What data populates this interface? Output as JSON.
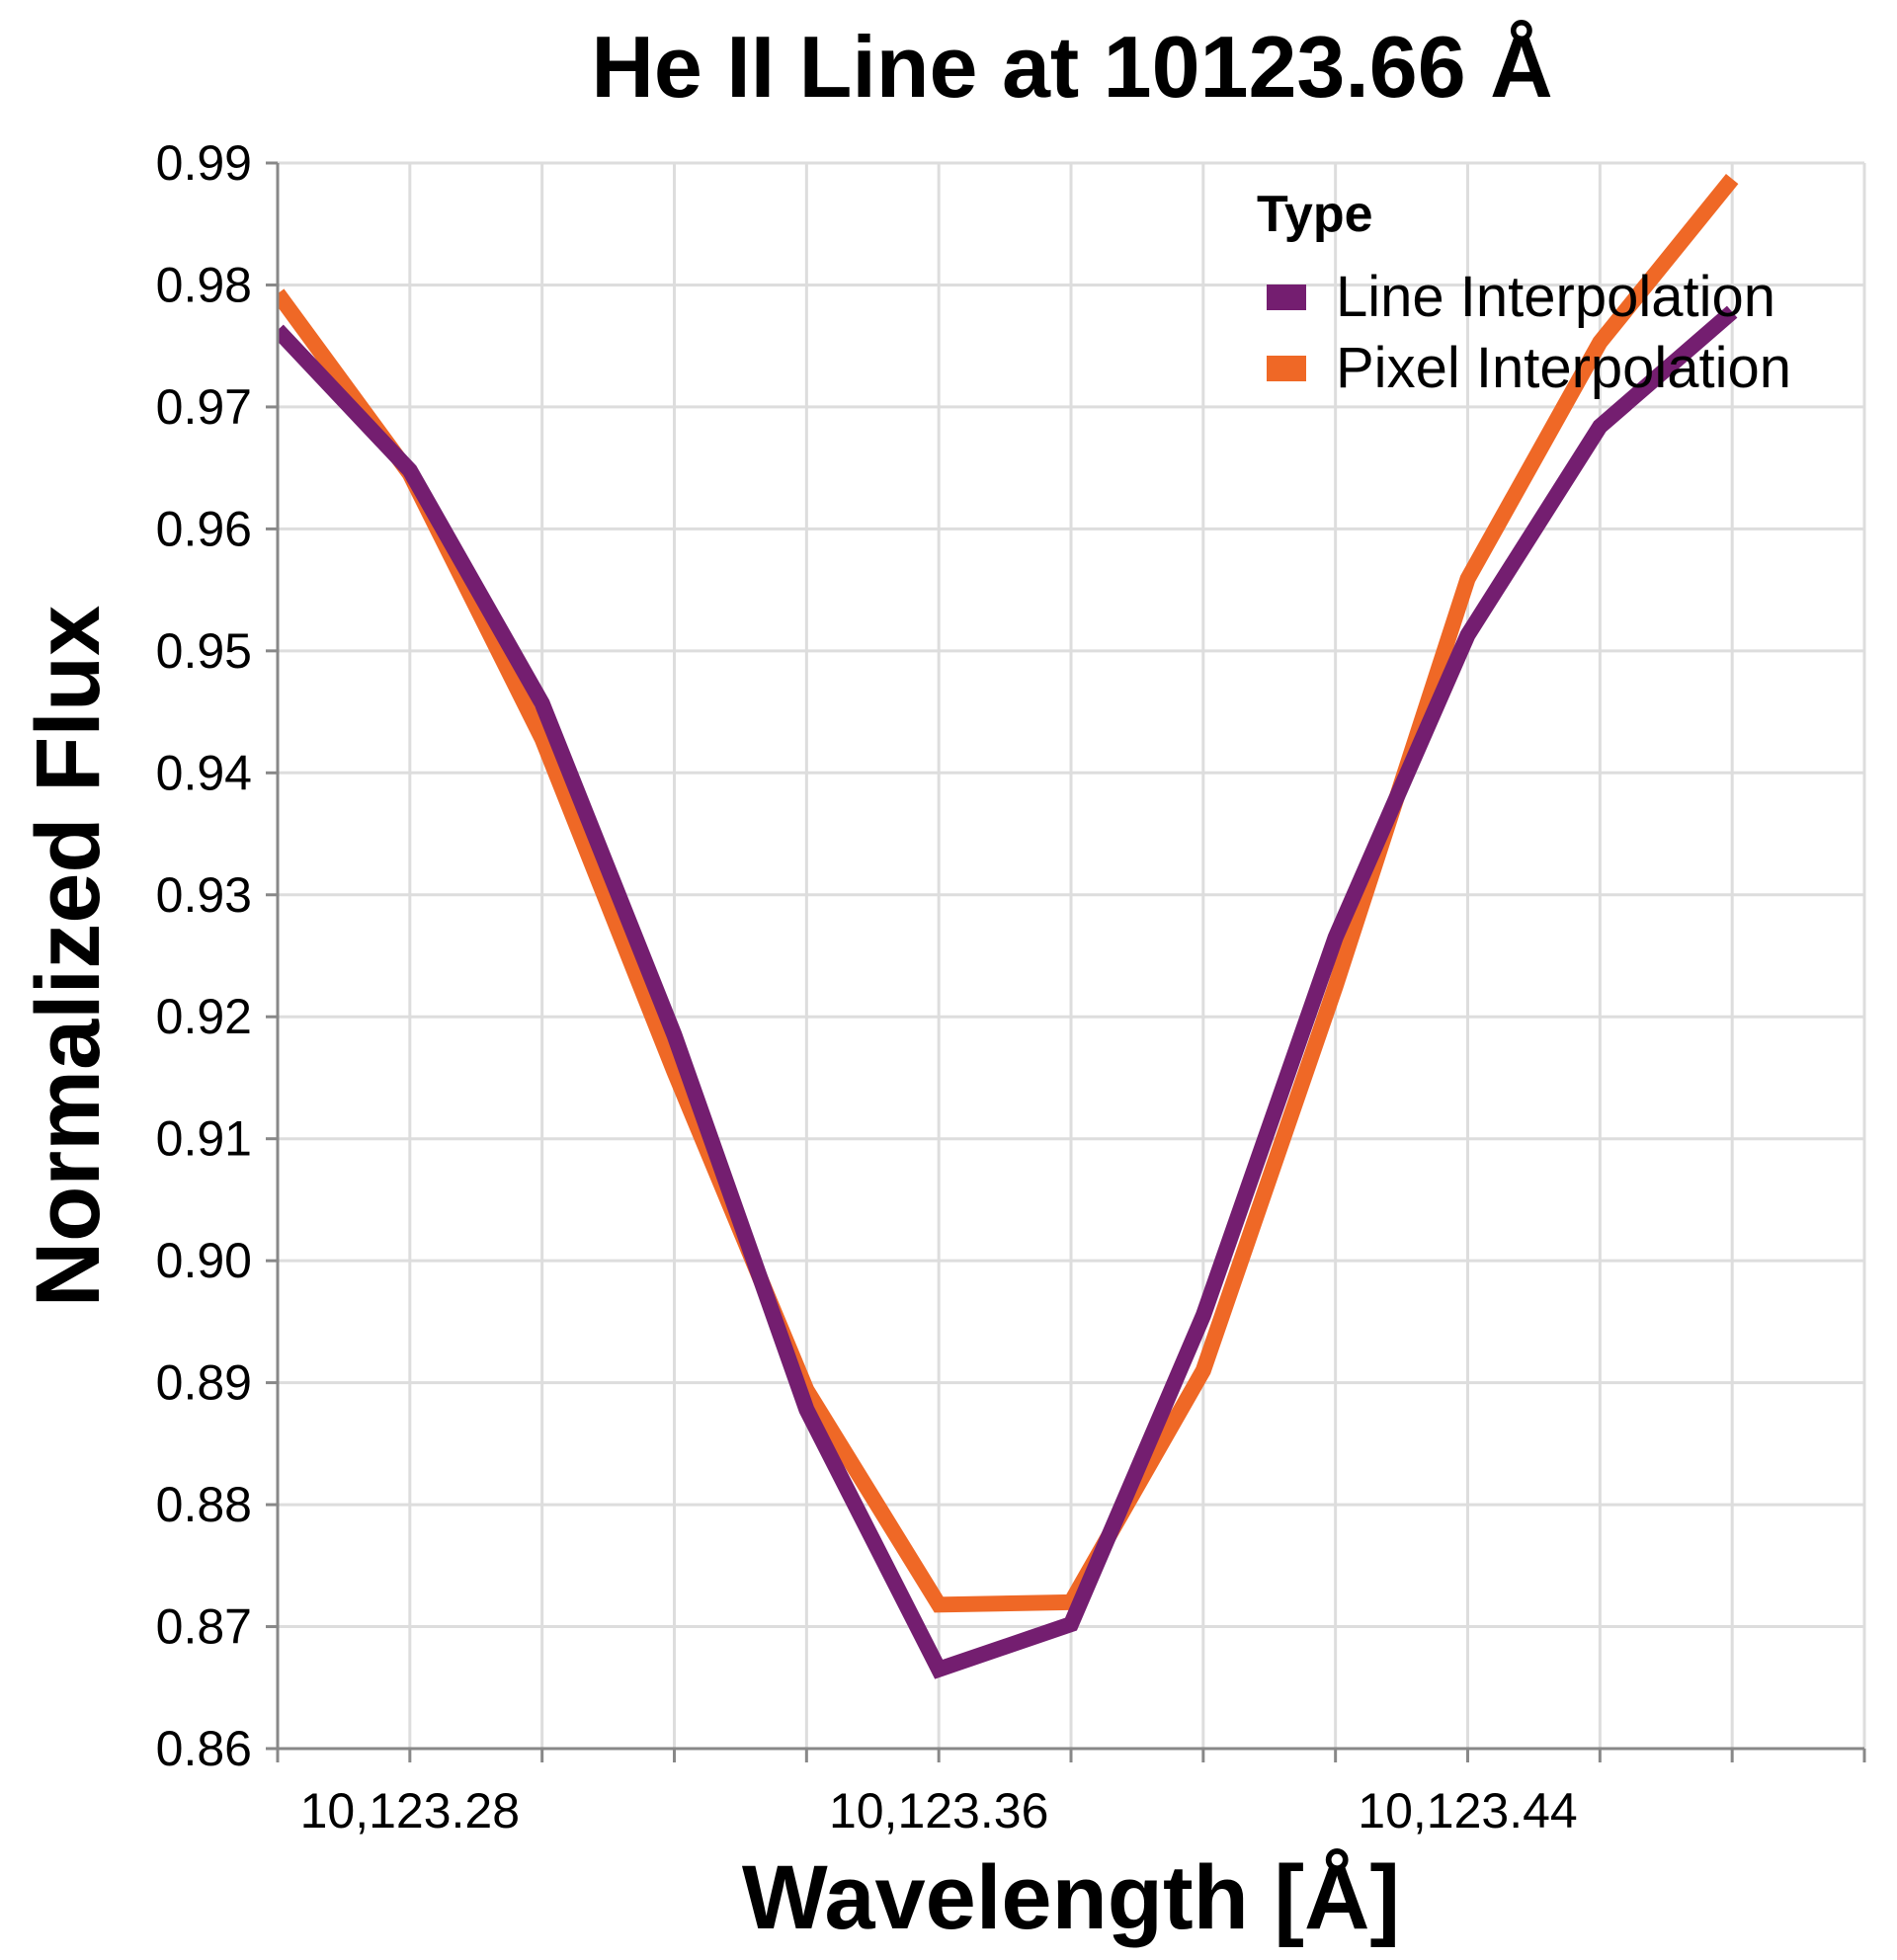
{
  "chart_data": {
    "type": "line",
    "title": "He II Line at 10123.66 Å",
    "xlabel": "Wavelength [Å]",
    "ylabel": "Normalized Flux",
    "xlim": [
      10123.26,
      10123.5
    ],
    "ylim": [
      0.86,
      0.99
    ],
    "x_ticks": [
      10123.26,
      10123.28,
      10123.3,
      10123.32,
      10123.34,
      10123.36,
      10123.38,
      10123.4,
      10123.42,
      10123.44,
      10123.46,
      10123.48,
      10123.5
    ],
    "x_tick_labels": [
      {
        "value": 10123.28,
        "label": "10,123.28"
      },
      {
        "value": 10123.36,
        "label": "10,123.36"
      },
      {
        "value": 10123.44,
        "label": "10,123.44"
      }
    ],
    "y_ticks": [
      {
        "value": 0.86,
        "label": "0.86"
      },
      {
        "value": 0.87,
        "label": "0.87"
      },
      {
        "value": 0.88,
        "label": "0.88"
      },
      {
        "value": 0.89,
        "label": "0.89"
      },
      {
        "value": 0.9,
        "label": "0.90"
      },
      {
        "value": 0.91,
        "label": "0.91"
      },
      {
        "value": 0.92,
        "label": "0.92"
      },
      {
        "value": 0.93,
        "label": "0.93"
      },
      {
        "value": 0.94,
        "label": "0.94"
      },
      {
        "value": 0.95,
        "label": "0.95"
      },
      {
        "value": 0.96,
        "label": "0.96"
      },
      {
        "value": 0.97,
        "label": "0.97"
      },
      {
        "value": 0.98,
        "label": "0.98"
      },
      {
        "value": 0.99,
        "label": "0.99"
      }
    ],
    "grid": true,
    "legend": {
      "title": "Type",
      "position": "top-right"
    },
    "series": [
      {
        "name": "Line Interpolation",
        "color": "#741e70",
        "points": [
          [
            10123.26,
            0.9763
          ],
          [
            10123.28,
            0.9648
          ],
          [
            10123.3,
            0.9457
          ],
          [
            10123.32,
            0.9185
          ],
          [
            10123.34,
            0.8878
          ],
          [
            10123.36,
            0.8665
          ],
          [
            10123.38,
            0.8702
          ],
          [
            10123.4,
            0.8955
          ],
          [
            10123.42,
            0.9265
          ],
          [
            10123.44,
            0.9513
          ],
          [
            10123.46,
            0.9684
          ],
          [
            10123.48,
            0.9778
          ]
        ]
      },
      {
        "name": "Pixel Interpolation",
        "color": "#ef6826",
        "points": [
          [
            10123.26,
            0.9793
          ],
          [
            10123.28,
            0.9645
          ],
          [
            10123.3,
            0.9428
          ],
          [
            10123.32,
            0.9155
          ],
          [
            10123.34,
            0.8894
          ],
          [
            10123.36,
            0.8718
          ],
          [
            10123.38,
            0.872
          ],
          [
            10123.4,
            0.891
          ],
          [
            10123.42,
            0.9225
          ],
          [
            10123.44,
            0.9559
          ],
          [
            10123.46,
            0.9753
          ],
          [
            10123.48,
            0.9887
          ]
        ]
      }
    ]
  }
}
